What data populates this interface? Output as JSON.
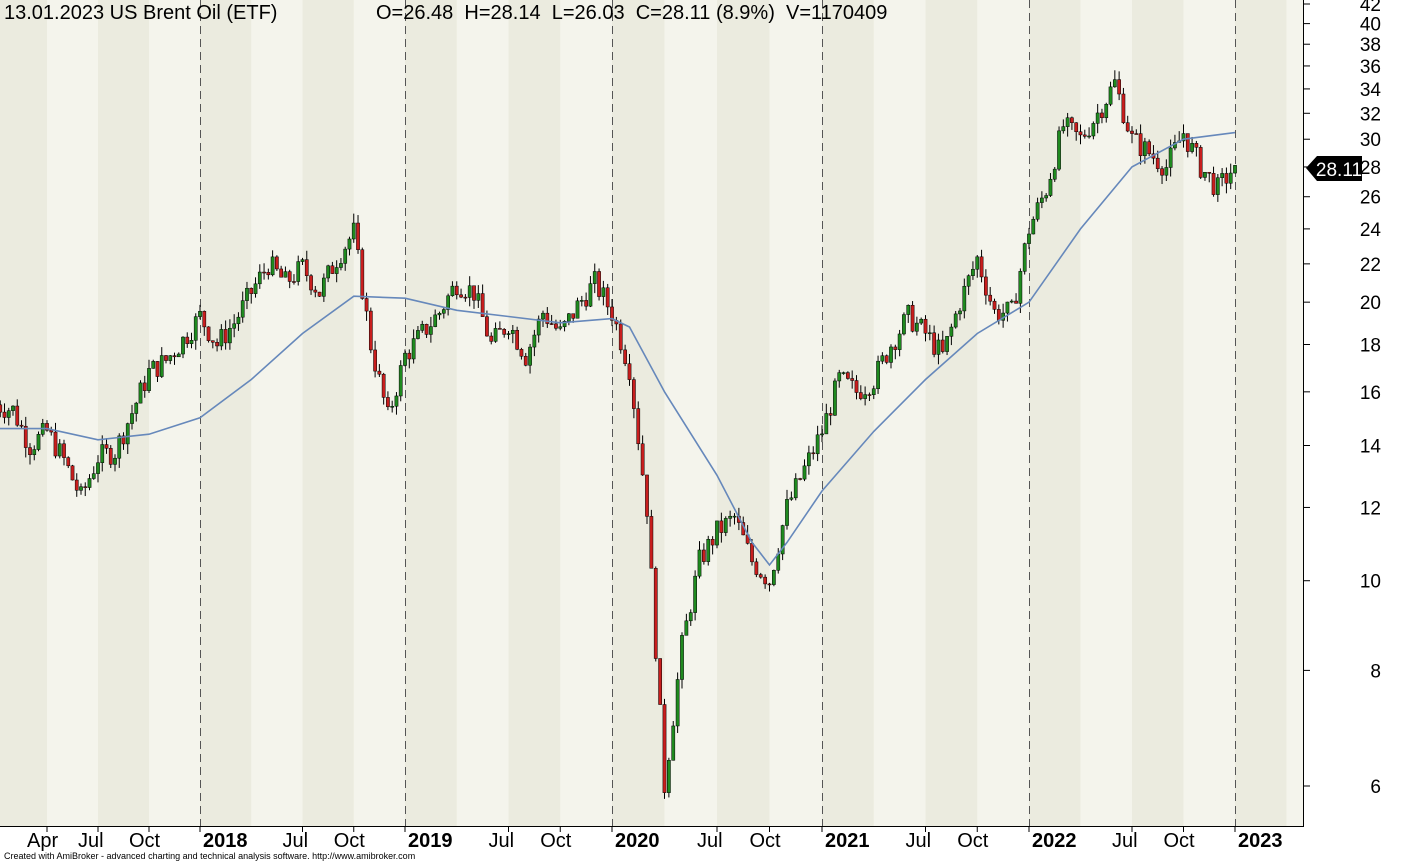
{
  "header": {
    "date": "13.01.2023",
    "title": "US Brent Oil (ETF)",
    "open": "O=26.48",
    "high": "H=28.14",
    "low": "L=26.03",
    "close": "C=28.11 (8.9%)",
    "volume": "V=1170409"
  },
  "last_price_label": "28.11",
  "credit": "Created with AmiBroker - advanced charting and technical analysis software. http://www.amibroker.com",
  "colors": {
    "background_light": "#f4f4ec",
    "background_dark": "#ebebdf",
    "candle_up": "#1f8a1f",
    "candle_down": "#c81e1e",
    "moving_average": "#6688bb",
    "axis": "#000000"
  },
  "chart_data": {
    "type": "candlestick",
    "scale": "log",
    "ylim": [
      5.4,
      42
    ],
    "y_ticks": [
      6,
      8,
      10,
      12,
      14,
      16,
      18,
      20,
      22,
      24,
      26,
      28,
      30,
      32,
      34,
      36,
      38,
      40,
      42
    ],
    "x_tick_labels": [
      {
        "label": "Apr",
        "date": "2017-04",
        "bold": false
      },
      {
        "label": "Jul",
        "date": "2017-07",
        "bold": false
      },
      {
        "label": "Oct",
        "date": "2017-10",
        "bold": false
      },
      {
        "label": "2018",
        "date": "2018-01",
        "bold": true
      },
      {
        "label": "Jul",
        "date": "2018-07",
        "bold": false
      },
      {
        "label": "Oct",
        "date": "2018-10",
        "bold": false
      },
      {
        "label": "2019",
        "date": "2019-01",
        "bold": true
      },
      {
        "label": "Jul",
        "date": "2019-07",
        "bold": false
      },
      {
        "label": "Oct",
        "date": "2019-10",
        "bold": false
      },
      {
        "label": "2020",
        "date": "2020-01",
        "bold": true
      },
      {
        "label": "Jul",
        "date": "2020-07",
        "bold": false
      },
      {
        "label": "Oct",
        "date": "2020-10",
        "bold": false
      },
      {
        "label": "2021",
        "date": "2021-01",
        "bold": true
      },
      {
        "label": "Jul",
        "date": "2021-07",
        "bold": false
      },
      {
        "label": "Oct",
        "date": "2021-10",
        "bold": false
      },
      {
        "label": "2022",
        "date": "2022-01",
        "bold": true
      },
      {
        "label": "Jul",
        "date": "2022-07",
        "bold": false
      },
      {
        "label": "Oct",
        "date": "2022-10",
        "bold": false
      },
      {
        "label": "2023",
        "date": "2023-01",
        "bold": true
      }
    ],
    "series": [
      {
        "name": "price",
        "kind": "weekly-candles",
        "approx_weekly_close_path": [
          [
            "2017-01",
            15.5
          ],
          [
            "2017-02",
            15.3
          ],
          [
            "2017-03",
            14.0
          ],
          [
            "2017-04",
            14.5
          ],
          [
            "2017-05",
            13.5
          ],
          [
            "2017-06",
            12.3
          ],
          [
            "2017-07",
            13.6
          ],
          [
            "2017-08",
            13.8
          ],
          [
            "2017-09",
            15.2
          ],
          [
            "2017-10",
            16.8
          ],
          [
            "2017-11",
            17.3
          ],
          [
            "2017-12",
            18.2
          ],
          [
            "2018-01",
            19.3
          ],
          [
            "2018-02",
            18.0
          ],
          [
            "2018-03",
            19.0
          ],
          [
            "2018-04",
            20.5
          ],
          [
            "2018-05",
            22.0
          ],
          [
            "2018-06",
            21.0
          ],
          [
            "2018-07",
            21.8
          ],
          [
            "2018-08",
            20.5
          ],
          [
            "2018-09",
            22.3
          ],
          [
            "2018-10",
            23.8
          ],
          [
            "2018-11",
            18.0
          ],
          [
            "2018-12",
            15.0
          ],
          [
            "2019-01",
            17.5
          ],
          [
            "2019-02",
            18.5
          ],
          [
            "2019-03",
            19.5
          ],
          [
            "2019-04",
            21.0
          ],
          [
            "2019-05",
            20.5
          ],
          [
            "2019-06",
            18.0
          ],
          [
            "2019-07",
            19.0
          ],
          [
            "2019-08",
            17.5
          ],
          [
            "2019-09",
            19.5
          ],
          [
            "2019-10",
            18.5
          ],
          [
            "2019-11",
            19.8
          ],
          [
            "2019-12",
            21.0
          ],
          [
            "2020-01",
            19.5
          ],
          [
            "2020-02",
            17.0
          ],
          [
            "2020-03",
            12.0
          ],
          [
            "2020-04",
            6.0
          ],
          [
            "2020-05",
            8.5
          ],
          [
            "2020-06",
            10.5
          ],
          [
            "2020-07",
            11.3
          ],
          [
            "2020-08",
            11.7
          ],
          [
            "2020-09",
            10.5
          ],
          [
            "2020-10",
            10.0
          ],
          [
            "2020-11",
            12.0
          ],
          [
            "2020-12",
            13.2
          ],
          [
            "2021-01",
            14.5
          ],
          [
            "2021-02",
            16.5
          ],
          [
            "2021-03",
            16.0
          ],
          [
            "2021-04",
            16.5
          ],
          [
            "2021-05",
            18.0
          ],
          [
            "2021-06",
            19.3
          ],
          [
            "2021-07",
            18.5
          ],
          [
            "2021-08",
            17.5
          ],
          [
            "2021-09",
            20.0
          ],
          [
            "2021-10",
            22.3
          ],
          [
            "2021-11",
            19.5
          ],
          [
            "2021-12",
            19.5
          ],
          [
            "2022-01",
            24.0
          ],
          [
            "2022-02",
            26.5
          ],
          [
            "2022-03",
            31.0
          ],
          [
            "2022-04",
            30.0
          ],
          [
            "2022-05",
            32.0
          ],
          [
            "2022-06",
            34.5
          ],
          [
            "2022-07",
            30.0
          ],
          [
            "2022-08",
            29.0
          ],
          [
            "2022-09",
            28.0
          ],
          [
            "2022-10",
            30.5
          ],
          [
            "2022-11",
            28.0
          ],
          [
            "2022-12",
            26.5
          ],
          [
            "2023-01",
            28.11
          ]
        ]
      },
      {
        "name": "moving-average",
        "kind": "line",
        "points": [
          [
            "2017-01",
            14.6
          ],
          [
            "2017-04",
            14.6
          ],
          [
            "2017-07",
            14.2
          ],
          [
            "2017-10",
            14.4
          ],
          [
            "2018-01",
            15.0
          ],
          [
            "2018-04",
            16.5
          ],
          [
            "2018-07",
            18.5
          ],
          [
            "2018-10",
            20.3
          ],
          [
            "2019-01",
            20.2
          ],
          [
            "2019-04",
            19.6
          ],
          [
            "2019-07",
            19.3
          ],
          [
            "2019-10",
            19.0
          ],
          [
            "2020-01",
            19.2
          ],
          [
            "2020-02",
            18.8
          ],
          [
            "2020-04",
            16.0
          ],
          [
            "2020-07",
            13.0
          ],
          [
            "2020-09",
            11.0
          ],
          [
            "2020-10",
            10.4
          ],
          [
            "2020-11",
            11.0
          ],
          [
            "2021-01",
            12.5
          ],
          [
            "2021-04",
            14.5
          ],
          [
            "2021-07",
            16.5
          ],
          [
            "2021-10",
            18.5
          ],
          [
            "2022-01",
            20.0
          ],
          [
            "2022-04",
            24.0
          ],
          [
            "2022-07",
            28.0
          ],
          [
            "2022-10",
            30.0
          ],
          [
            "2023-01",
            30.5
          ]
        ]
      }
    ],
    "last_price": 28.11
  }
}
